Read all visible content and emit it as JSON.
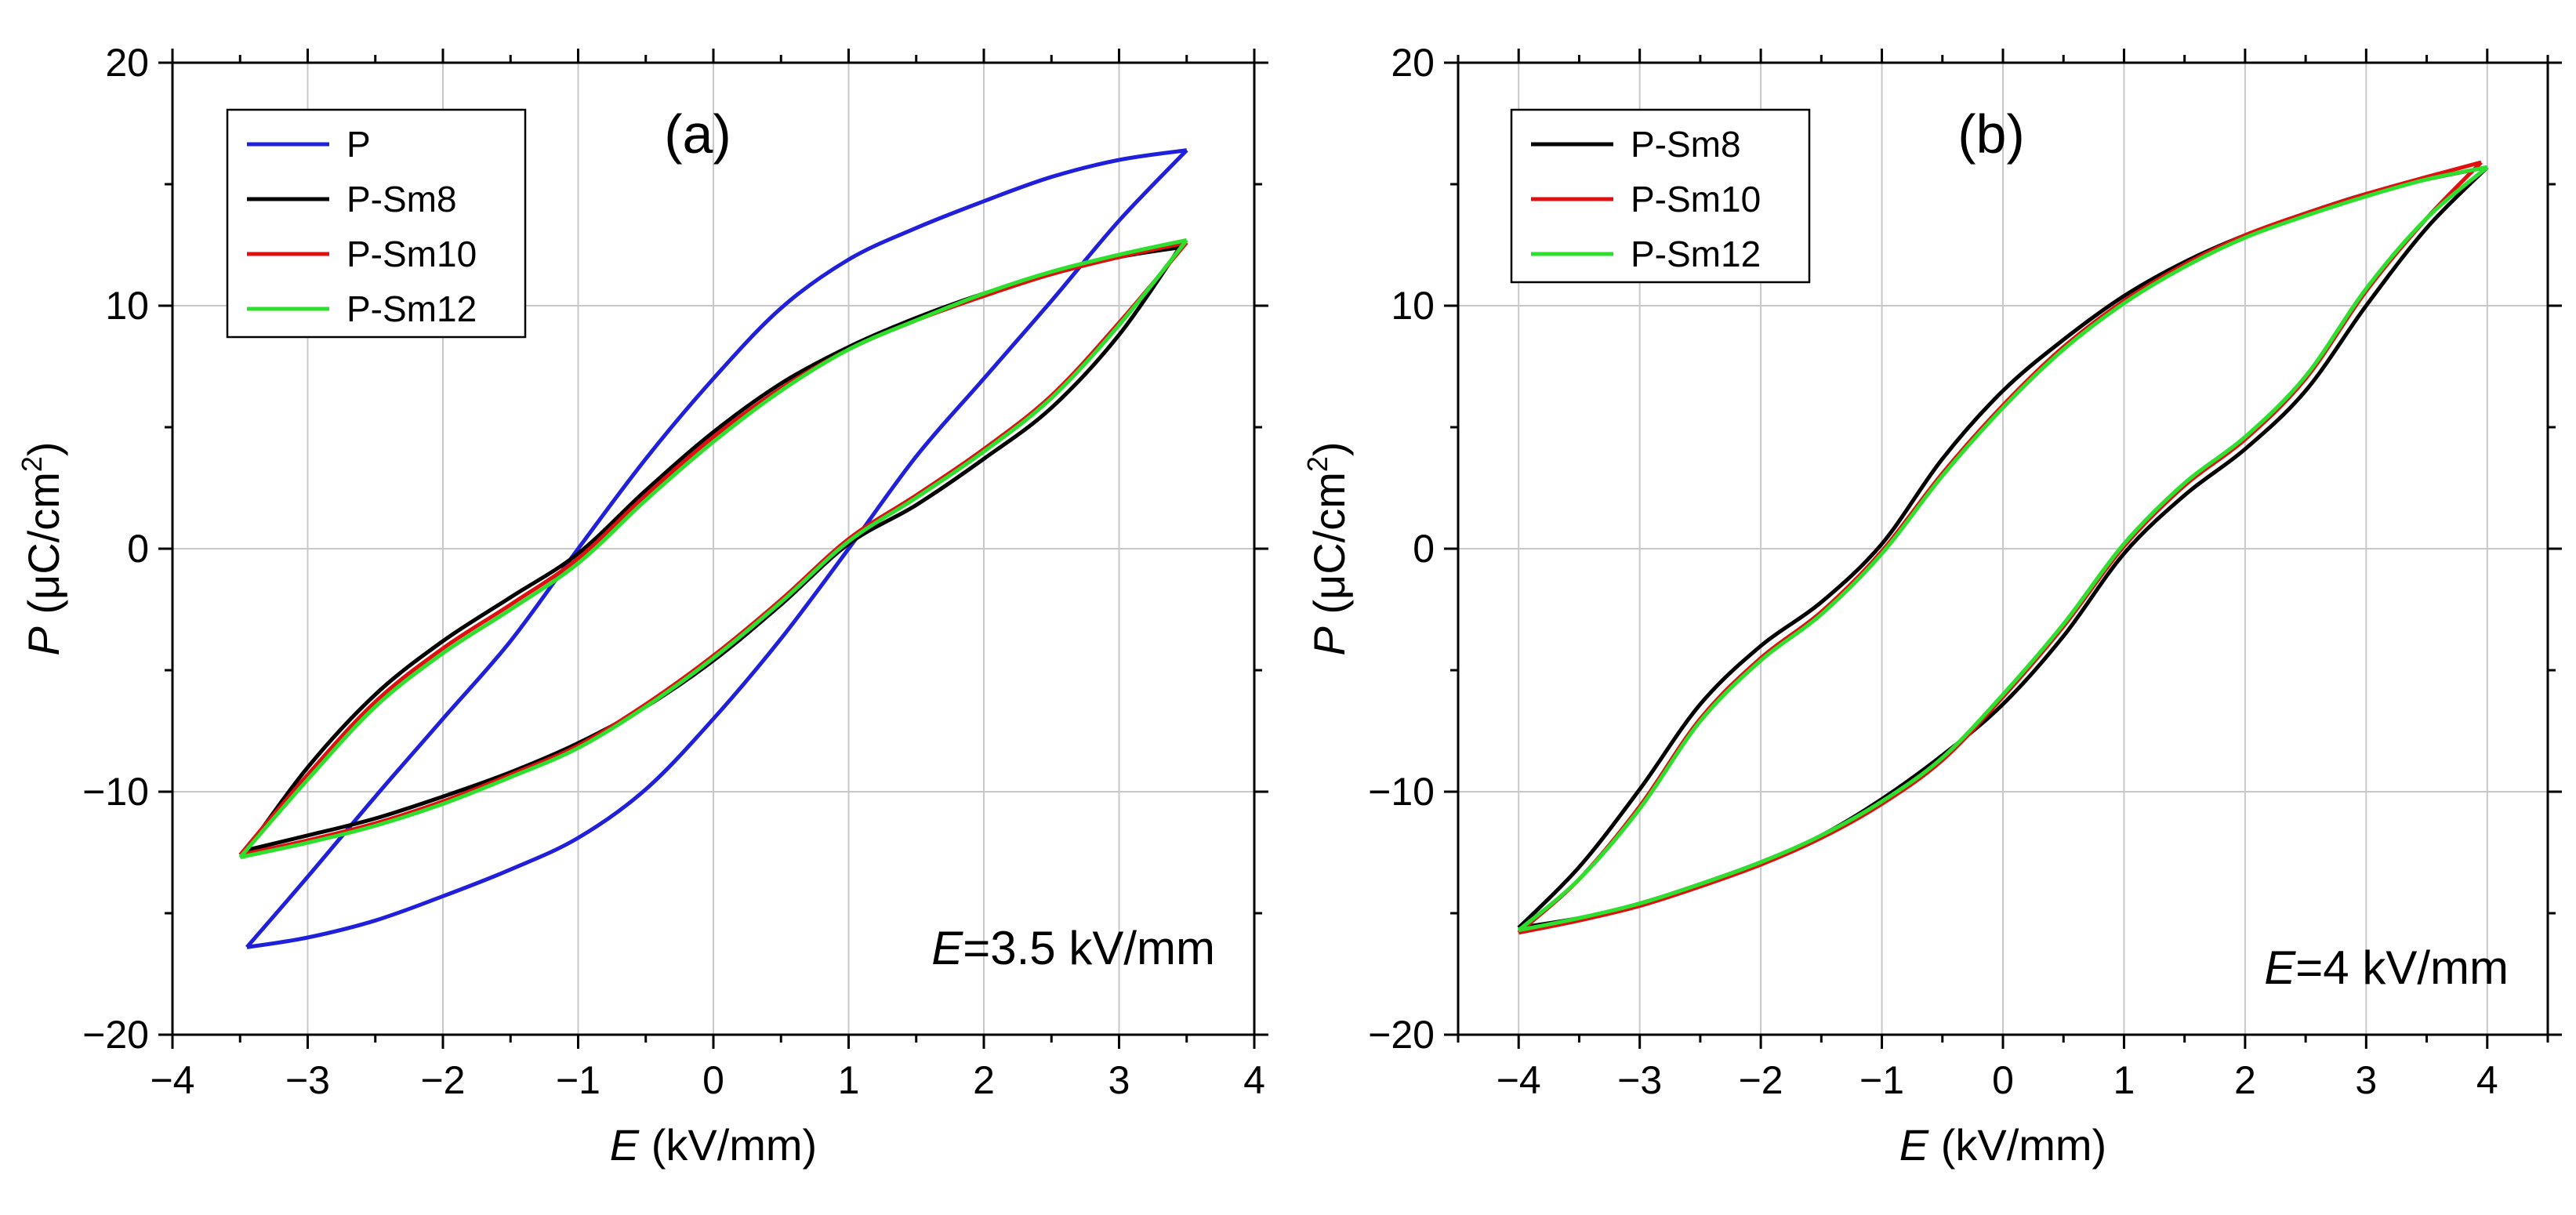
{
  "chart_data": [
    {
      "panel": "a",
      "type": "line",
      "panel_label": "(a)",
      "xlabel": "E (kV/mm)",
      "xlabel_var": "E",
      "xlabel_unit": " (kV/mm)",
      "ylabel": "P (μC/cm2)",
      "ylabel_var": "P",
      "ylabel_unit_pre": " (μC/cm",
      "ylabel_unit_sup": "2",
      "ylabel_unit_post": ")",
      "xlim": [
        -4,
        4
      ],
      "ylim": [
        -20,
        20
      ],
      "xticks": [
        -4,
        -3,
        -2,
        -1,
        0,
        1,
        2,
        3,
        4
      ],
      "yticks": [
        -20,
        -10,
        0,
        10,
        20
      ],
      "xtick_labels": [
        "−4",
        "−3",
        "−2",
        "−1",
        "0",
        "1",
        "2",
        "3",
        "4"
      ],
      "ytick_labels": [
        "−20",
        "−10",
        "0",
        "10",
        "20"
      ],
      "grid": true,
      "legend_position": "top-left",
      "annotation": {
        "var": "E",
        "text": "=3.5 kV/mm"
      },
      "series": [
        {
          "name": "P",
          "color": "#1f1fdc",
          "upper": [
            [
              -3.45,
              -16.4
            ],
            [
              -3.0,
              -16.0
            ],
            [
              -2.5,
              -15.3
            ],
            [
              -2.0,
              -14.3
            ],
            [
              -1.5,
              -13.2
            ],
            [
              -1.0,
              -11.9
            ],
            [
              -0.5,
              -9.9
            ],
            [
              0.0,
              -7.0
            ],
            [
              0.5,
              -3.7
            ],
            [
              1.0,
              0.0
            ],
            [
              1.5,
              3.8
            ],
            [
              2.0,
              7.0
            ],
            [
              2.5,
              10.2
            ],
            [
              3.0,
              13.5
            ],
            [
              3.5,
              16.4
            ]
          ],
          "lower": [
            [
              3.5,
              16.4
            ],
            [
              3.0,
              16.0
            ],
            [
              2.5,
              15.3
            ],
            [
              2.0,
              14.3
            ],
            [
              1.5,
              13.2
            ],
            [
              1.0,
              11.9
            ],
            [
              0.5,
              9.9
            ],
            [
              0.0,
              7.0
            ],
            [
              -0.5,
              3.7
            ],
            [
              -1.0,
              0.0
            ],
            [
              -1.5,
              -3.8
            ],
            [
              -2.0,
              -7.0
            ],
            [
              -2.5,
              -10.2
            ],
            [
              -3.0,
              -13.5
            ],
            [
              -3.45,
              -16.4
            ]
          ]
        },
        {
          "name": "P-Sm8",
          "color": "#000000",
          "upper": [
            [
              -3.45,
              -12.4
            ],
            [
              -3.0,
              -11.8
            ],
            [
              -2.5,
              -11.1
            ],
            [
              -2.0,
              -10.2
            ],
            [
              -1.5,
              -9.2
            ],
            [
              -1.0,
              -8.0
            ],
            [
              -0.5,
              -6.5
            ],
            [
              0.0,
              -4.6
            ],
            [
              0.5,
              -2.3
            ],
            [
              1.0,
              0.2
            ],
            [
              1.5,
              1.8
            ],
            [
              2.0,
              3.7
            ],
            [
              2.5,
              5.8
            ],
            [
              3.0,
              8.8
            ],
            [
              3.45,
              12.4
            ]
          ],
          "lower": [
            [
              3.45,
              12.4
            ],
            [
              3.0,
              12.0
            ],
            [
              2.5,
              11.3
            ],
            [
              2.0,
              10.5
            ],
            [
              1.5,
              9.5
            ],
            [
              1.0,
              8.3
            ],
            [
              0.5,
              6.8
            ],
            [
              0.0,
              4.8
            ],
            [
              -0.5,
              2.4
            ],
            [
              -1.0,
              -0.2
            ],
            [
              -1.5,
              -2.0
            ],
            [
              -2.0,
              -3.8
            ],
            [
              -2.5,
              -6.0
            ],
            [
              -3.0,
              -9.0
            ],
            [
              -3.45,
              -12.4
            ]
          ]
        },
        {
          "name": "P-Sm10",
          "color": "#e01010",
          "upper": [
            [
              -3.5,
              -12.6
            ],
            [
              -3.0,
              -12.0
            ],
            [
              -2.5,
              -11.3
            ],
            [
              -2.0,
              -10.4
            ],
            [
              -1.5,
              -9.3
            ],
            [
              -1.0,
              -8.1
            ],
            [
              -0.5,
              -6.4
            ],
            [
              0.0,
              -4.4
            ],
            [
              0.5,
              -2.1
            ],
            [
              1.0,
              0.4
            ],
            [
              1.5,
              2.2
            ],
            [
              2.0,
              4.1
            ],
            [
              2.5,
              6.3
            ],
            [
              3.0,
              9.3
            ],
            [
              3.5,
              12.6
            ]
          ],
          "lower": [
            [
              3.5,
              12.6
            ],
            [
              3.0,
              12.0
            ],
            [
              2.5,
              11.3
            ],
            [
              2.0,
              10.4
            ],
            [
              1.5,
              9.4
            ],
            [
              1.0,
              8.2
            ],
            [
              0.5,
              6.6
            ],
            [
              0.0,
              4.6
            ],
            [
              -0.5,
              2.2
            ],
            [
              -1.0,
              -0.4
            ],
            [
              -1.5,
              -2.3
            ],
            [
              -2.0,
              -4.1
            ],
            [
              -2.5,
              -6.3
            ],
            [
              -3.0,
              -9.3
            ],
            [
              -3.5,
              -12.6
            ]
          ]
        },
        {
          "name": "P-Sm12",
          "color": "#2ee02e",
          "upper": [
            [
              -3.5,
              -12.7
            ],
            [
              -3.0,
              -12.1
            ],
            [
              -2.5,
              -11.4
            ],
            [
              -2.0,
              -10.5
            ],
            [
              -1.5,
              -9.4
            ],
            [
              -1.0,
              -8.2
            ],
            [
              -0.5,
              -6.5
            ],
            [
              0.0,
              -4.5
            ],
            [
              0.5,
              -2.2
            ],
            [
              1.0,
              0.3
            ],
            [
              1.5,
              2.1
            ],
            [
              2.0,
              4.0
            ],
            [
              2.5,
              6.2
            ],
            [
              3.0,
              9.2
            ],
            [
              3.5,
              12.7
            ]
          ],
          "lower": [
            [
              3.5,
              12.7
            ],
            [
              3.0,
              12.1
            ],
            [
              2.5,
              11.4
            ],
            [
              2.0,
              10.5
            ],
            [
              1.5,
              9.4
            ],
            [
              1.0,
              8.2
            ],
            [
              0.5,
              6.5
            ],
            [
              0.0,
              4.4
            ],
            [
              -0.5,
              2.0
            ],
            [
              -1.0,
              -0.6
            ],
            [
              -1.5,
              -2.5
            ],
            [
              -2.0,
              -4.3
            ],
            [
              -2.5,
              -6.5
            ],
            [
              -3.0,
              -9.5
            ],
            [
              -3.5,
              -12.7
            ]
          ]
        }
      ]
    },
    {
      "panel": "b",
      "type": "line",
      "panel_label": "(b)",
      "xlabel": "E (kV/mm)",
      "xlabel_var": "E",
      "xlabel_unit": " (kV/mm)",
      "ylabel": "P (μC/cm2)",
      "ylabel_var": "P",
      "ylabel_unit_pre": " (μC/cm",
      "ylabel_unit_sup": "2",
      "ylabel_unit_post": ")",
      "xlim": [
        -4.5,
        4.5
      ],
      "ylim": [
        -20,
        20
      ],
      "xticks": [
        -4,
        -3,
        -2,
        -1,
        0,
        1,
        2,
        3,
        4
      ],
      "yticks": [
        -20,
        -10,
        0,
        10,
        20
      ],
      "xtick_labels": [
        "−4",
        "−3",
        "−2",
        "−1",
        "0",
        "1",
        "2",
        "3",
        "4"
      ],
      "ytick_labels": [
        "−20",
        "−10",
        "0",
        "10",
        "20"
      ],
      "grid": true,
      "legend_position": "top-left",
      "annotation": {
        "var": "E",
        "text": "=4 kV/mm"
      },
      "series": [
        {
          "name": "P-Sm8",
          "color": "#000000",
          "upper": [
            [
              -4.0,
              -15.6
            ],
            [
              -3.5,
              -15.2
            ],
            [
              -3.0,
              -14.6
            ],
            [
              -2.5,
              -13.8
            ],
            [
              -2.0,
              -12.9
            ],
            [
              -1.5,
              -11.8
            ],
            [
              -1.0,
              -10.3
            ],
            [
              -0.5,
              -8.5
            ],
            [
              0.0,
              -6.4
            ],
            [
              0.5,
              -3.6
            ],
            [
              1.0,
              -0.2
            ],
            [
              1.5,
              2.2
            ],
            [
              2.0,
              4.1
            ],
            [
              2.5,
              6.5
            ],
            [
              3.0,
              10.0
            ],
            [
              3.5,
              13.2
            ],
            [
              4.0,
              15.7
            ]
          ],
          "lower": [
            [
              4.0,
              15.7
            ],
            [
              3.5,
              15.2
            ],
            [
              3.0,
              14.6
            ],
            [
              2.5,
              13.8
            ],
            [
              2.0,
              12.9
            ],
            [
              1.5,
              11.8
            ],
            [
              1.0,
              10.4
            ],
            [
              0.5,
              8.6
            ],
            [
              0.0,
              6.5
            ],
            [
              -0.5,
              3.7
            ],
            [
              -1.0,
              0.2
            ],
            [
              -1.5,
              -2.2
            ],
            [
              -2.0,
              -4.0
            ],
            [
              -2.5,
              -6.4
            ],
            [
              -3.0,
              -9.9
            ],
            [
              -3.5,
              -13.1
            ],
            [
              -4.0,
              -15.6
            ]
          ]
        },
        {
          "name": "P-Sm10",
          "color": "#e01010",
          "upper": [
            [
              -4.0,
              -15.8
            ],
            [
              -3.5,
              -15.3
            ],
            [
              -3.0,
              -14.7
            ],
            [
              -2.5,
              -13.9
            ],
            [
              -2.0,
              -13.0
            ],
            [
              -1.5,
              -11.9
            ],
            [
              -1.0,
              -10.5
            ],
            [
              -0.5,
              -8.7
            ],
            [
              0.0,
              -6.1
            ],
            [
              0.5,
              -3.2
            ],
            [
              1.0,
              0.1
            ],
            [
              1.5,
              2.6
            ],
            [
              2.0,
              4.5
            ],
            [
              2.5,
              7.0
            ],
            [
              3.0,
              10.6
            ],
            [
              3.5,
              13.6
            ],
            [
              3.95,
              15.9
            ]
          ],
          "lower": [
            [
              3.95,
              15.9
            ],
            [
              3.5,
              15.3
            ],
            [
              3.0,
              14.6
            ],
            [
              2.5,
              13.8
            ],
            [
              2.0,
              12.9
            ],
            [
              1.5,
              11.7
            ],
            [
              1.0,
              10.2
            ],
            [
              0.5,
              8.3
            ],
            [
              0.0,
              5.9
            ],
            [
              -0.5,
              3.1
            ],
            [
              -1.0,
              -0.1
            ],
            [
              -1.5,
              -2.6
            ],
            [
              -2.0,
              -4.5
            ],
            [
              -2.5,
              -7.0
            ],
            [
              -3.0,
              -10.6
            ],
            [
              -3.5,
              -13.6
            ],
            [
              -4.0,
              -15.8
            ]
          ]
        },
        {
          "name": "P-Sm12",
          "color": "#2ee02e",
          "upper": [
            [
              -4.0,
              -15.7
            ],
            [
              -3.5,
              -15.2
            ],
            [
              -3.0,
              -14.6
            ],
            [
              -2.5,
              -13.8
            ],
            [
              -2.0,
              -12.9
            ],
            [
              -1.5,
              -11.8
            ],
            [
              -1.0,
              -10.4
            ],
            [
              -0.5,
              -8.6
            ],
            [
              0.0,
              -6.0
            ],
            [
              0.5,
              -3.1
            ],
            [
              1.0,
              0.2
            ],
            [
              1.5,
              2.7
            ],
            [
              2.0,
              4.6
            ],
            [
              2.5,
              7.1
            ],
            [
              3.0,
              10.7
            ],
            [
              3.5,
              13.6
            ],
            [
              4.0,
              15.7
            ]
          ],
          "lower": [
            [
              4.0,
              15.7
            ],
            [
              3.5,
              15.2
            ],
            [
              3.0,
              14.5
            ],
            [
              2.5,
              13.7
            ],
            [
              2.0,
              12.8
            ],
            [
              1.5,
              11.6
            ],
            [
              1.0,
              10.1
            ],
            [
              0.5,
              8.2
            ],
            [
              0.0,
              5.8
            ],
            [
              -0.5,
              3.0
            ],
            [
              -1.0,
              -0.2
            ],
            [
              -1.5,
              -2.7
            ],
            [
              -2.0,
              -4.6
            ],
            [
              -2.5,
              -7.1
            ],
            [
              -3.0,
              -10.7
            ],
            [
              -3.5,
              -13.6
            ],
            [
              -4.0,
              -15.7
            ]
          ]
        }
      ]
    }
  ]
}
